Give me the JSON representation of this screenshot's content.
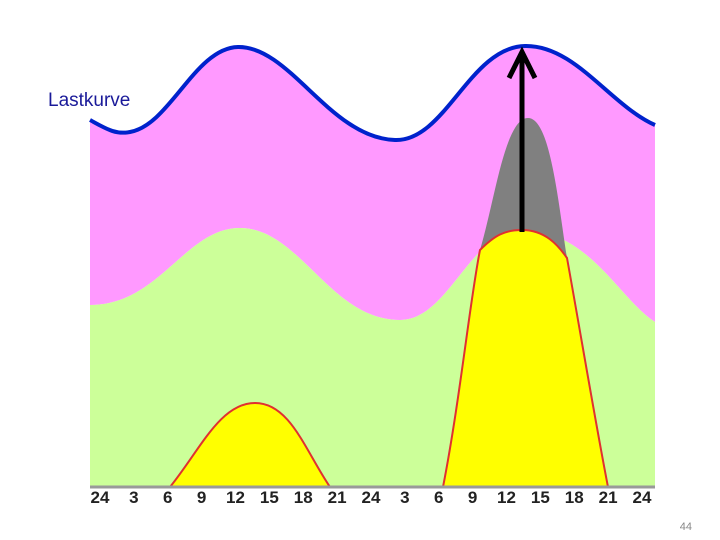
{
  "label": "Lastkurve",
  "hours": [
    24,
    3,
    6,
    9,
    12,
    15,
    18,
    21,
    24,
    3,
    6,
    9,
    12,
    15,
    18,
    21,
    24
  ],
  "page_number": "44"
}
